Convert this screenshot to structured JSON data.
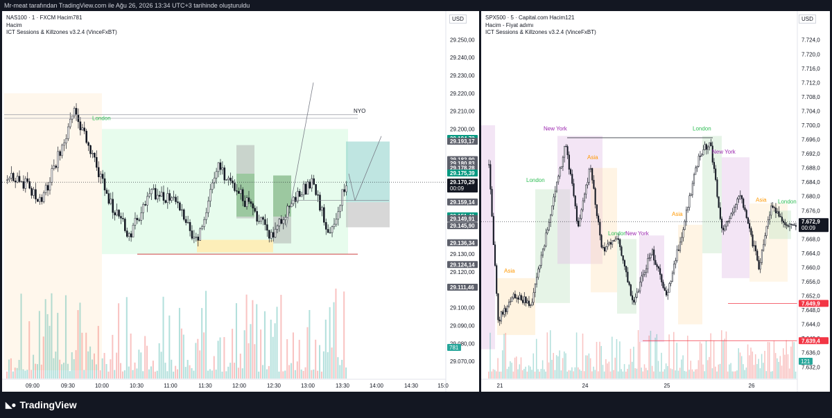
{
  "header": {
    "attribution": "Mr-meat tarafından TradingView.com ile Ağu 26, 2026 13:34 UTC+3 tarihinde oluşturuldu"
  },
  "footer": {
    "brand": "TradingView",
    "icon": "tradingview-logo-icon"
  },
  "colors": {
    "up": "#26a69a",
    "down": "#ef5350",
    "candle": "#131722",
    "london": "#2ebd54",
    "newyork": "#9c27b0",
    "asia": "#ff9800"
  },
  "chart_data": [
    {
      "type": "candlestick",
      "title": "NAS100 · 1 · FXCM",
      "volume_label": "Hacim",
      "volume_value": "781",
      "indicator": "ICT Sessions & Killzones v3.2.4 (VinceFxBT)",
      "currency": "USD",
      "x_ticks": [
        "09:00",
        "09:30",
        "10:00",
        "10:30",
        "11:00",
        "11:30",
        "12:00",
        "12:30",
        "13:00",
        "13:30",
        "14:00",
        "14:30",
        "15:0"
      ],
      "y_ticks": [
        "29.250,00",
        "29.240,00",
        "29.230,00",
        "29.220,00",
        "29.210,00",
        "29.200,00",
        "29.130,00",
        "29.120,00",
        "29.100,00",
        "29.090,00",
        "29.080,00",
        "29.070,00"
      ],
      "ylim": [
        29065,
        29254
      ],
      "price_labels": [
        {
          "text": "29.194,72",
          "value": 29194.72,
          "kind": "green"
        },
        {
          "text": "29.193,17",
          "value": 29193.17,
          "kind": "gray"
        },
        {
          "text": "29.182,90",
          "value": 29182.9,
          "kind": "gray"
        },
        {
          "text": "29.180,83",
          "value": 29180.83,
          "kind": "gray"
        },
        {
          "text": "29.178,28",
          "value": 29178.28,
          "kind": "gray"
        },
        {
          "text": "29.175,39",
          "value": 29175.39,
          "kind": "green"
        },
        {
          "text": "29.170,29",
          "value": 29170.29,
          "kind": "black",
          "sub": "00:09"
        },
        {
          "text": "29.159,14",
          "value": 29159.14,
          "kind": "gray"
        },
        {
          "text": "29.151,41",
          "value": 29151.41,
          "kind": "green"
        },
        {
          "text": "29.149,91",
          "value": 29149.91,
          "kind": "gray"
        },
        {
          "text": "29.145,90",
          "value": 29145.9,
          "kind": "gray"
        },
        {
          "text": "29.136,34",
          "value": 29136.34,
          "kind": "gray"
        },
        {
          "text": "29.124,14",
          "value": 29124.14,
          "kind": "gray"
        },
        {
          "text": "29.111,46",
          "value": 29111.46,
          "kind": "gray"
        }
      ],
      "volume_badge": "781",
      "annotations": [
        "London",
        "NYO"
      ],
      "last_price": 29170.29
    },
    {
      "type": "candlestick",
      "title": "SPX500 · 5 · Capital.com",
      "volume_label": "Hacim",
      "volume_value": "121",
      "subtitle": "Hacim - Fiyat adımı",
      "indicator": "ICT Sessions & Killzones v3.2.4 (VinceFxBT)",
      "currency": "USD",
      "x_ticks": [
        "21",
        "24",
        "25",
        "26"
      ],
      "y_ticks": [
        "7.724,0",
        "7.720,0",
        "7.716,0",
        "7.712,0",
        "7.708,0",
        "7.704,0",
        "7.700,0",
        "7.696,0",
        "7.692,0",
        "7.688,0",
        "7.684,0",
        "7.680,0",
        "7.676,0",
        "7.668,0",
        "7.664,0",
        "7.660,0",
        "7.656,0",
        "7.652,0",
        "7.648,0",
        "7.644,0",
        "7.640,0",
        "7.636,0",
        "7.632,0"
      ],
      "ylim": [
        7630.5,
        7725.7
      ],
      "price_labels": [
        {
          "text": "7.672,9",
          "value": 7672.9,
          "kind": "black",
          "sub": "00:09"
        },
        {
          "text": "7.649,9",
          "value": 7649.9,
          "kind": "red"
        },
        {
          "text": "7.639,4",
          "value": 7639.4,
          "kind": "red"
        }
      ],
      "volume_badge": "121",
      "annotations": [
        "Asia",
        "London",
        "New York",
        "Asia",
        "London",
        "New York",
        "Asia",
        "London",
        "New York",
        "Asia",
        "London"
      ],
      "last_price": 7672.9
    }
  ]
}
